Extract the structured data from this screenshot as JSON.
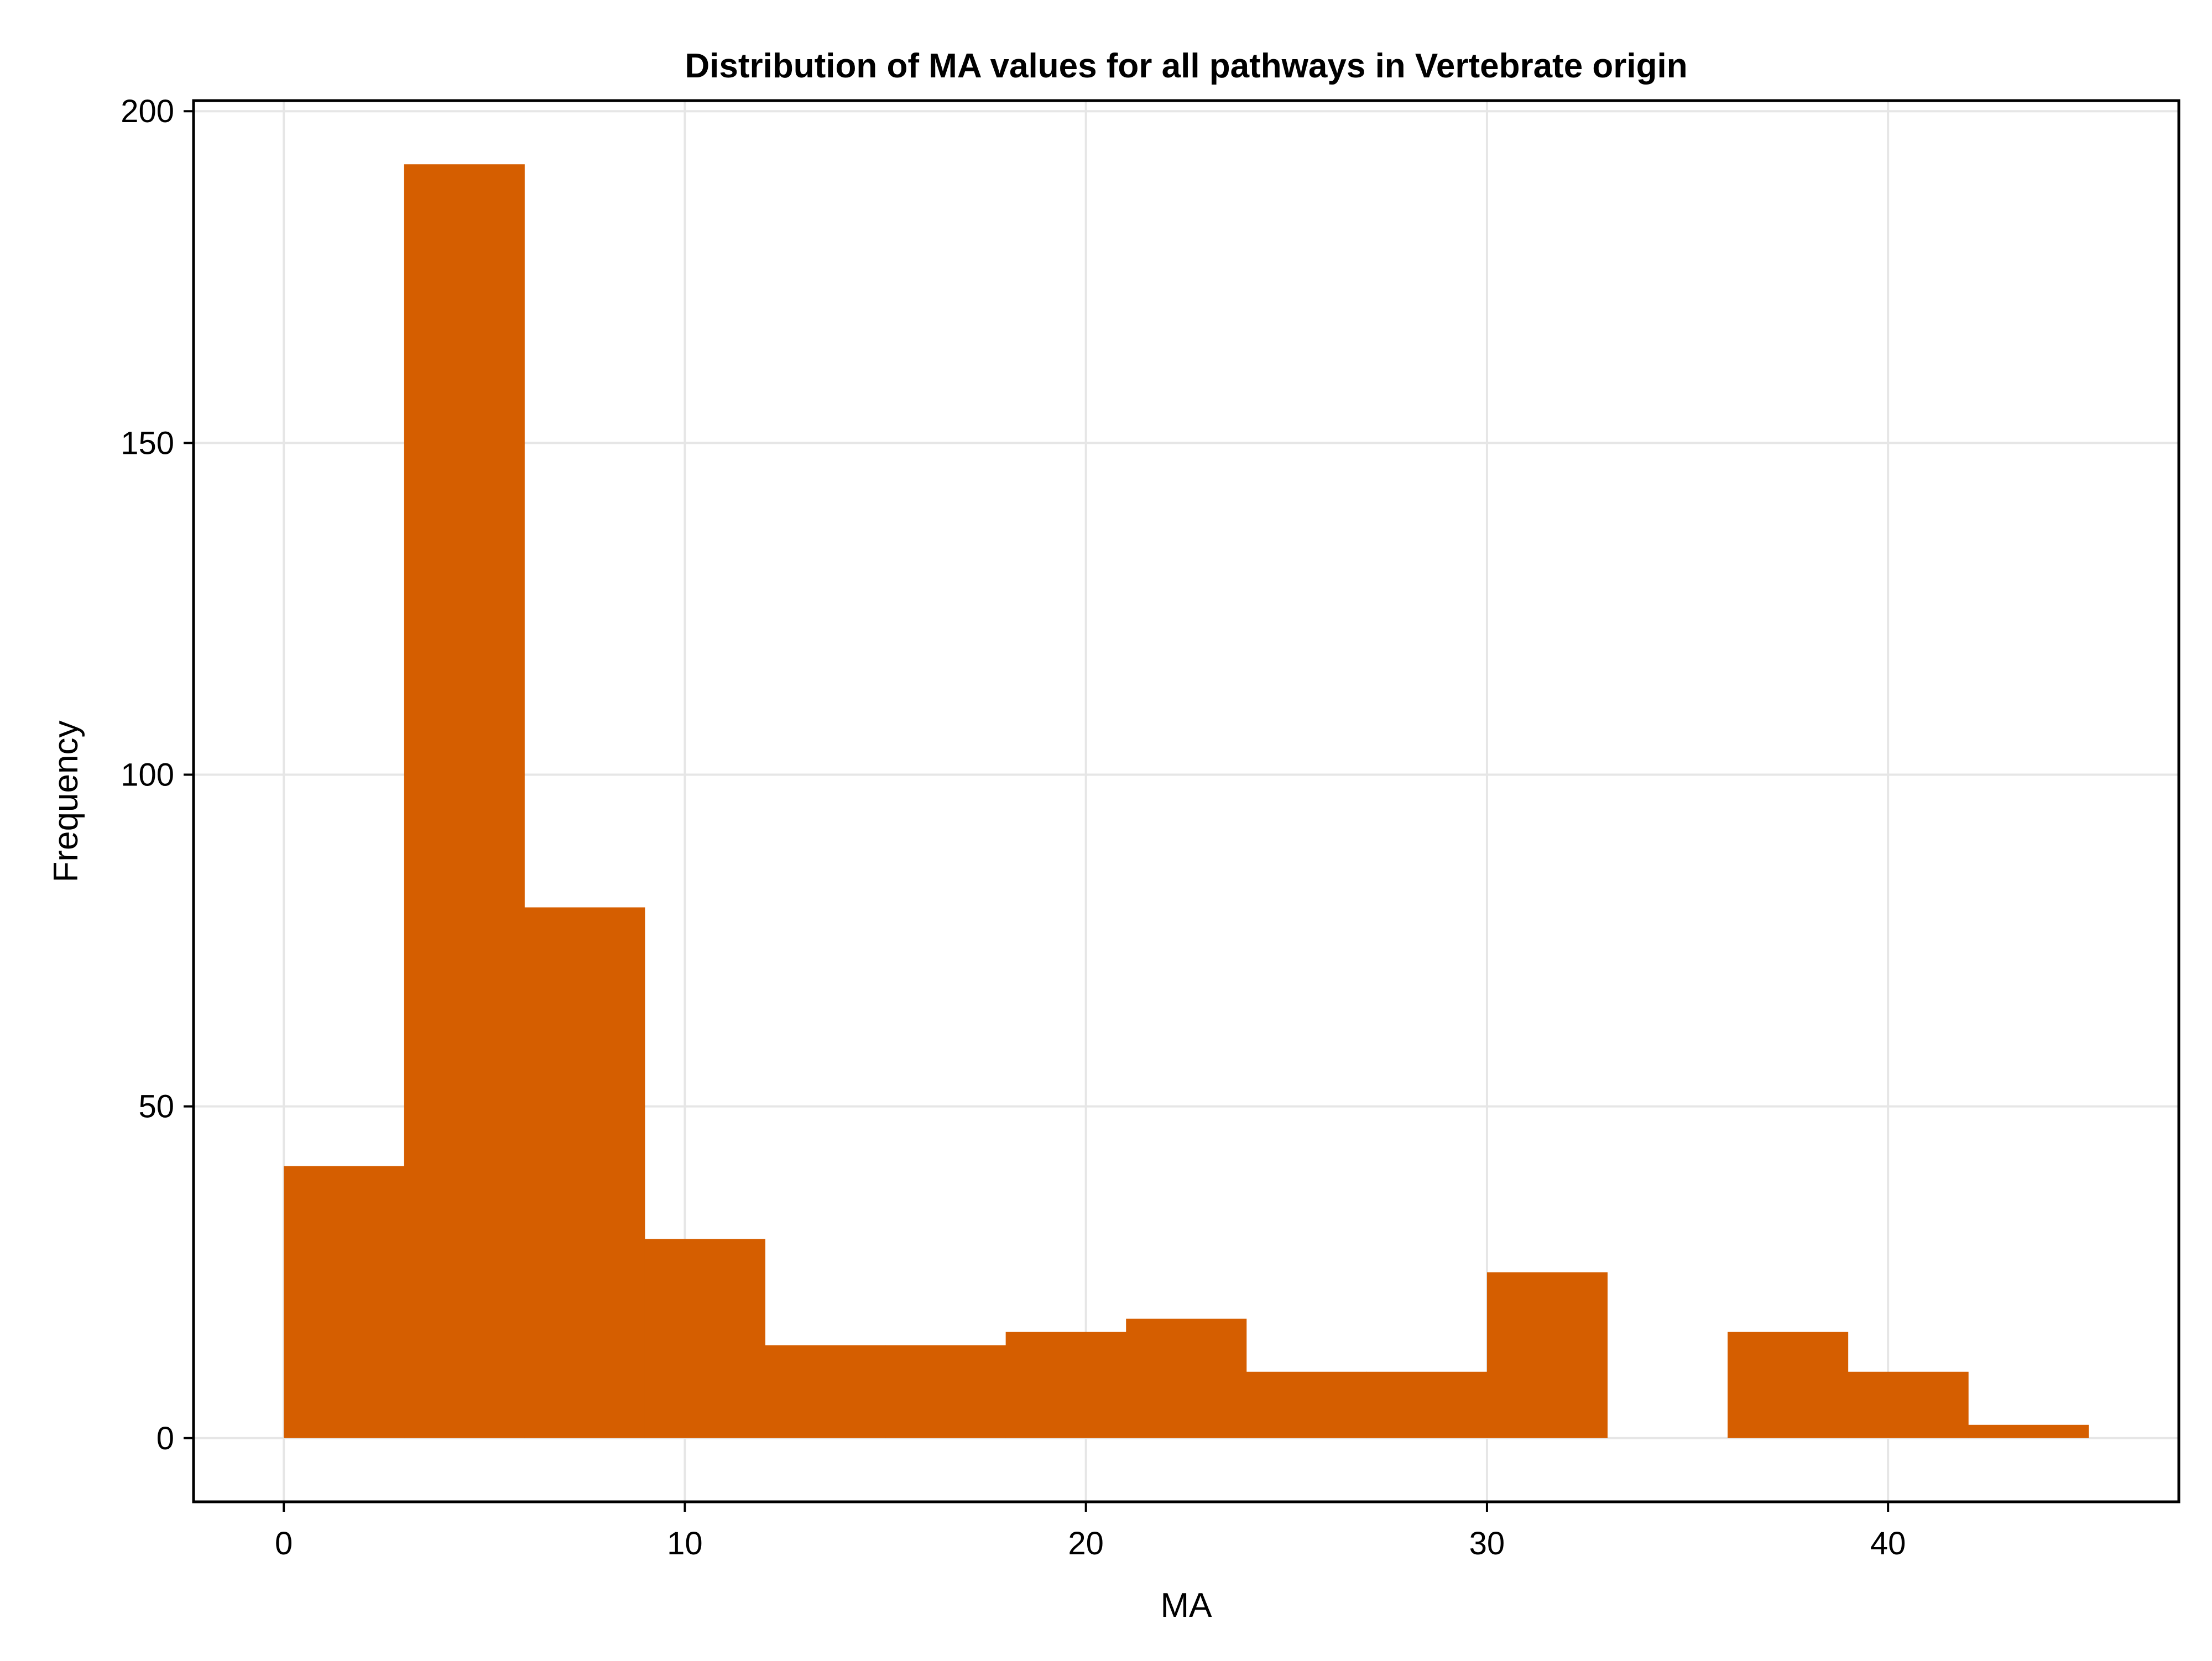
{
  "chart_data": {
    "type": "bar",
    "title": "Distribution of MA values for all pathways in Vertebrate origin",
    "xlabel": "MA",
    "ylabel": "Frequency",
    "bin_edges": [
      0,
      3,
      6,
      9,
      12,
      15,
      18,
      21,
      24,
      27,
      30,
      33,
      36,
      39,
      42,
      45
    ],
    "values": [
      41,
      192,
      80,
      30,
      14,
      14,
      16,
      18,
      10,
      10,
      25,
      0,
      16,
      10,
      2
    ],
    "xlim": [
      -2.25,
      47.25
    ],
    "ylim": [
      -9.6,
      201.6
    ],
    "x_ticks": [
      "0",
      "10",
      "20",
      "30",
      "40"
    ],
    "y_ticks": [
      "0",
      "50",
      "100",
      "150",
      "200"
    ],
    "grid": true,
    "colors": {
      "bar": "#d55e00",
      "grid": "#e6e6e6",
      "frame": "#000000"
    }
  }
}
